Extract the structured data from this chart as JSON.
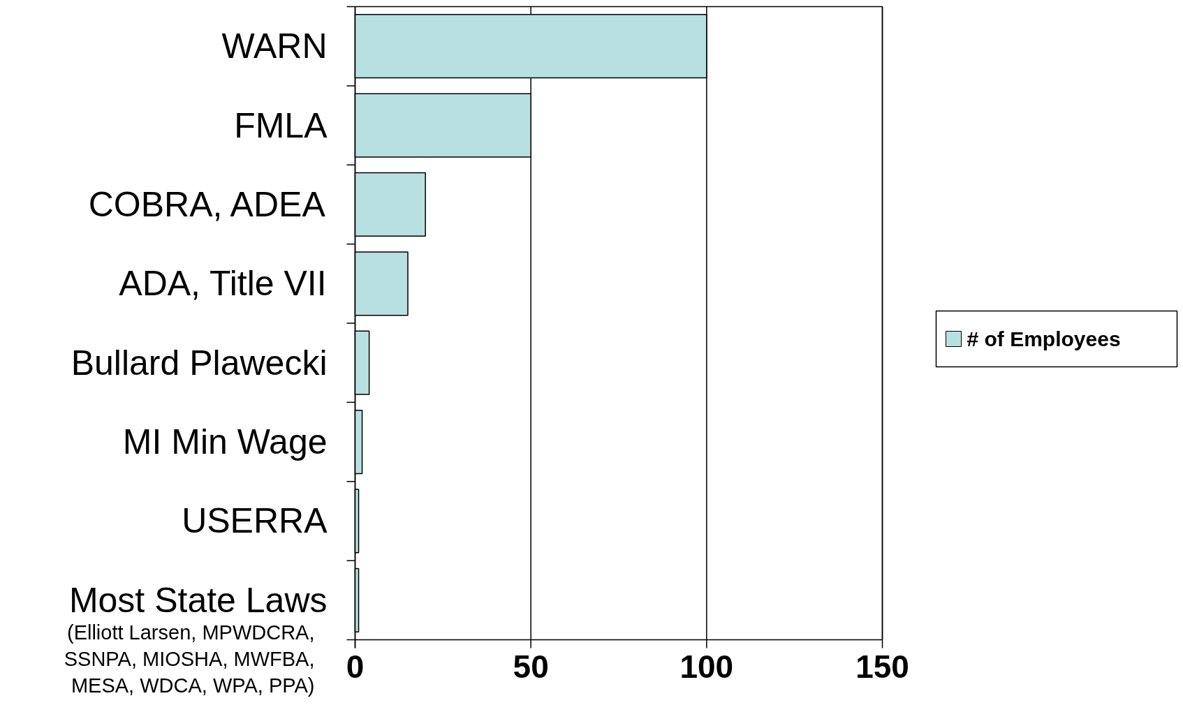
{
  "chart_data": {
    "type": "bar",
    "orientation": "horizontal",
    "categories": [
      "WARN",
      "FMLA",
      "COBRA, ADEA",
      "ADA, Title VII",
      "Bullard Plawecki",
      "MI Min Wage",
      "USERRA",
      "Most State Laws"
    ],
    "series": [
      {
        "name": "# of Employees",
        "color": "#b9e0e0",
        "values": [
          100,
          50,
          20,
          15,
          4,
          2,
          1,
          1
        ]
      }
    ],
    "xlim": [
      0,
      150
    ],
    "xticks": [
      0,
      50,
      100,
      150
    ],
    "grid": "x",
    "legend": "right",
    "annotations": [
      "(Elliott Larsen, MPWDCRA,\nSSNPA, MIOSHA, MWFBA,\nMESA, WDCA, WPA, PPA)"
    ]
  }
}
